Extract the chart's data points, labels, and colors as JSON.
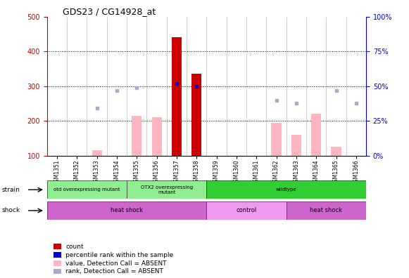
{
  "title": "GDS23 / CG14928_at",
  "samples": [
    "GSM1351",
    "GSM1352",
    "GSM1353",
    "GSM1354",
    "GSM1355",
    "GSM1356",
    "GSM1357",
    "GSM1358",
    "GSM1359",
    "GSM1360",
    "GSM1361",
    "GSM1362",
    "GSM1363",
    "GSM1364",
    "GSM1365",
    "GSM1366"
  ],
  "red_bars": [
    null,
    null,
    null,
    null,
    null,
    null,
    440,
    335,
    null,
    null,
    null,
    null,
    null,
    null,
    null,
    null
  ],
  "blue_squares_right": [
    null,
    null,
    null,
    null,
    null,
    null,
    52,
    50,
    null,
    null,
    null,
    null,
    null,
    null,
    null,
    null
  ],
  "pink_bars": [
    null,
    null,
    115,
    null,
    215,
    210,
    null,
    null,
    null,
    null,
    null,
    195,
    160,
    220,
    125,
    null
  ],
  "lavender_squares_right": [
    null,
    null,
    34,
    47,
    49,
    null,
    null,
    null,
    null,
    null,
    null,
    40,
    38,
    null,
    47,
    38
  ],
  "strain_groups": [
    {
      "label": "otd overexpressing mutant",
      "start": 0,
      "end": 4,
      "color": "#90EE90"
    },
    {
      "label": "OTX2 overexpressing\nmutant",
      "start": 4,
      "end": 8,
      "color": "#90EE90"
    },
    {
      "label": "wildtype",
      "start": 8,
      "end": 16,
      "color": "#32CD32"
    }
  ],
  "shock_groups": [
    {
      "label": "heat shock",
      "start": 0,
      "end": 8,
      "color": "#CC66CC"
    },
    {
      "label": "control",
      "start": 8,
      "end": 12,
      "color": "#EE99EE"
    },
    {
      "label": "heat shock",
      "start": 12,
      "end": 16,
      "color": "#CC66CC"
    }
  ],
  "ylim_left": [
    100,
    500
  ],
  "ylim_right": [
    0,
    100
  ],
  "left_ticks": [
    100,
    200,
    300,
    400,
    500
  ],
  "right_ticks": [
    0,
    25,
    50,
    75,
    100
  ],
  "red_color": "#CC0000",
  "blue_color": "#0000CC",
  "pink_color": "#FFB6C1",
  "lavender_color": "#AAAACC"
}
